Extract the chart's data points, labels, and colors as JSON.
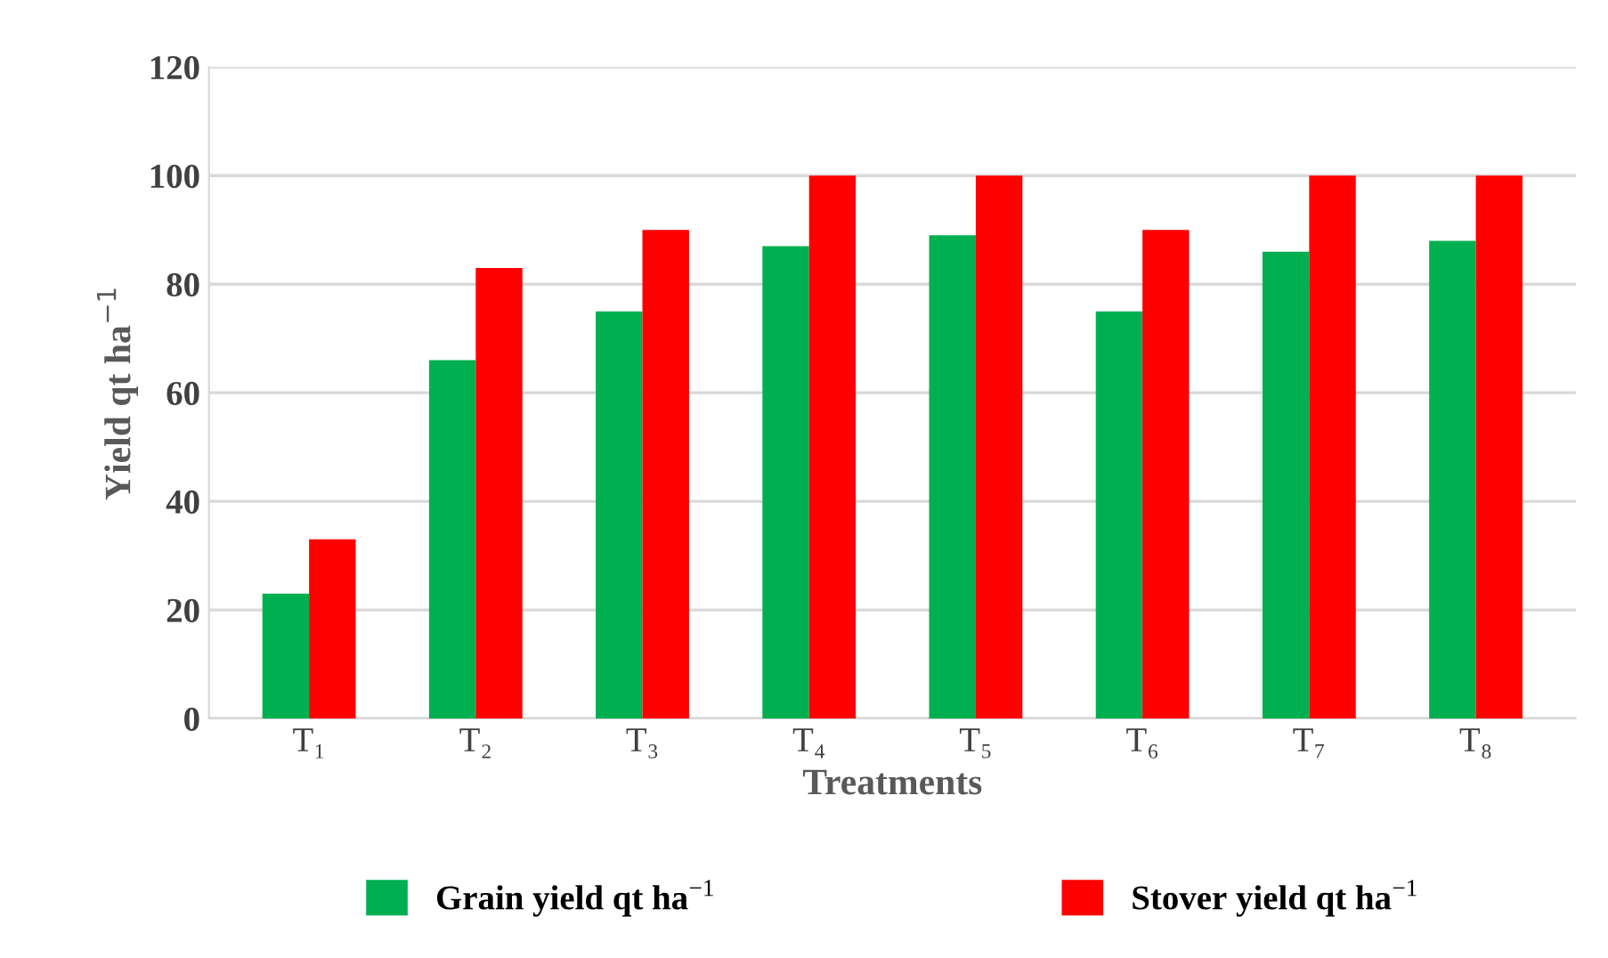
{
  "chart_data": {
    "type": "bar",
    "xlabel": "Treatments",
    "ylabel": "Yield qt ha$^{−1}$",
    "categories": [
      "T₁",
      "T₂",
      "T₃",
      "T₄",
      "T₅",
      "T₆",
      "T₇",
      "T₈"
    ],
    "series": [
      {
        "name": "Grain yield qt ha$^{−1}$",
        "color": "#00b050",
        "values": [
          23,
          66,
          75,
          87,
          89,
          75,
          86,
          88
        ]
      },
      {
        "name": "Stover yield qt ha$^{−1}$",
        "color": "#ff0000",
        "values": [
          33,
          83,
          90,
          100,
          100,
          90,
          100,
          100
        ]
      }
    ],
    "ylim": [
      0,
      120
    ],
    "yticks": [
      0,
      20,
      40,
      60,
      80,
      100,
      120
    ],
    "grid": "y",
    "legend": "bottom"
  }
}
